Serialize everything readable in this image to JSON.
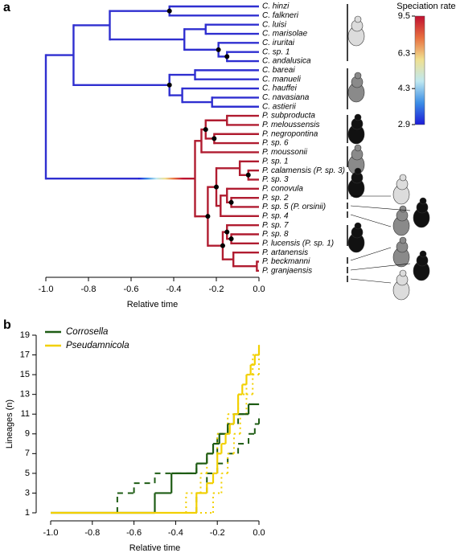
{
  "chart_data": [
    {
      "type": "tree",
      "panel": "a",
      "xlabel": "Relative time",
      "xlim": [
        -1,
        0
      ],
      "xticks": [
        {
          "value": -1,
          "label": "-1.0"
        },
        {
          "value": -0.8,
          "label": "-0.8"
        },
        {
          "value": -0.6,
          "label": "-0.6"
        },
        {
          "value": -0.4,
          "label": "-0.4"
        },
        {
          "value": -0.2,
          "label": "-0.2"
        },
        {
          "value": 0,
          "label": "0.0"
        }
      ],
      "colorbar": {
        "title": "Speciation rate",
        "log": true,
        "lim": [
          2.9,
          9.5
        ],
        "ticks": [
          2.9,
          4.3,
          6.3,
          9.5
        ],
        "colors": [
          "#1c1cd8",
          "#3c8ee6",
          "#bfe8f0",
          "#f0e090",
          "#e87040",
          "#c01030"
        ]
      },
      "tree": {
        "time": -1,
        "color": "#2f2fd0",
        "children": [
          {
            "time": -0.87,
            "color": "#2f2fd0",
            "children": [
              {
                "time": -0.7,
                "children": [
                  {
                    "time": -0.42,
                    "dot": true,
                    "children": [
                      {
                        "label": "C. hinzi"
                      },
                      {
                        "label": "C. falkneri"
                      }
                    ]
                  },
                  {
                    "time": -0.35,
                    "children": [
                      {
                        "time": -0.25,
                        "children": [
                          {
                            "label": "C. luisi"
                          },
                          {
                            "label": "C. marisolae"
                          }
                        ]
                      },
                      {
                        "time": -0.19,
                        "dot": true,
                        "children": [
                          {
                            "label": "C. iruritai"
                          },
                          {
                            "time": -0.15,
                            "dot": true,
                            "children": [
                              {
                                "label": "C. sp. 1"
                              },
                              {
                                "label": "C. andalusica"
                              }
                            ]
                          }
                        ]
                      }
                    ]
                  }
                ]
              },
              {
                "time": -0.42,
                "dot": true,
                "children": [
                  {
                    "time": -0.3,
                    "children": [
                      {
                        "label": "C. bareai"
                      },
                      {
                        "label": "C. manueli"
                      }
                    ]
                  },
                  {
                    "time": -0.36,
                    "children": [
                      {
                        "label": "C. hauffei"
                      },
                      {
                        "time": -0.22,
                        "children": [
                          {
                            "label": "C. navasiana"
                          },
                          {
                            "label": "C. astierii"
                          }
                        ]
                      }
                    ]
                  }
                ]
              }
            ]
          },
          {
            "time": -0.3,
            "color": "#b01c30",
            "children": [
              {
                "time": -0.27,
                "children": [
                  {
                    "time": -0.25,
                    "dot": true,
                    "children": [
                      {
                        "time": -0.15,
                        "children": [
                          {
                            "label": "P. subproducta"
                          },
                          {
                            "label": "P. meloussensis"
                          }
                        ]
                      },
                      {
                        "time": -0.21,
                        "dot": true,
                        "children": [
                          {
                            "label": "P. negropontina"
                          },
                          {
                            "label": "P. sp. 6"
                          }
                        ]
                      }
                    ]
                  },
                  {
                    "label": "P. moussonii"
                  }
                ]
              },
              {
                "time": -0.24,
                "dot": true,
                "children": [
                  {
                    "time": -0.2,
                    "dot": true,
                    "children": [
                      {
                        "time": -0.09,
                        "children": [
                          {
                            "label": "P. sp. 1"
                          },
                          {
                            "time": -0.05,
                            "dot": true,
                            "children": [
                              {
                                "label": "P. calamensis (P. sp. 3)"
                              },
                              {
                                "label": "P. sp. 3"
                              }
                            ]
                          }
                        ]
                      },
                      {
                        "time": -0.18,
                        "children": [
                          {
                            "time": -0.15,
                            "children": [
                              {
                                "label": "P. conovula"
                              },
                              {
                                "time": -0.13,
                                "dot": true,
                                "children": [
                                  {
                                    "label": "P. sp. 2"
                                  },
                                  {
                                    "label": "P. sp. 5 (P. orsinii)"
                                  }
                                ]
                              }
                            ]
                          },
                          {
                            "label": "P. sp. 4"
                          }
                        ]
                      }
                    ]
                  },
                  {
                    "time": -0.17,
                    "dot": true,
                    "children": [
                      {
                        "time": -0.15,
                        "dot": true,
                        "children": [
                          {
                            "label": "P. sp. 7"
                          },
                          {
                            "time": -0.13,
                            "dot": true,
                            "children": [
                              {
                                "label": "P. sp. 8"
                              },
                              {
                                "label": "P. lucensis (P. sp. 1)"
                              }
                            ]
                          }
                        ]
                      },
                      {
                        "time": -0.12,
                        "children": [
                          {
                            "label": "P. artanensis"
                          },
                          {
                            "time": -0.01,
                            "children": [
                              {
                                "label": "P. beckmanni"
                              },
                              {
                                "label": "P. granjaensis"
                              }
                            ]
                          }
                        ]
                      }
                    ]
                  }
                ]
              }
            ]
          }
        ]
      }
    },
    {
      "type": "step",
      "panel": "b",
      "xlabel": "Relative time",
      "ylabel": "Lineages (n)",
      "xlim": [
        -1,
        0
      ],
      "ylim": [
        1,
        19
      ],
      "xticks": [
        {
          "value": -1,
          "label": "-1.0"
        },
        {
          "value": -0.8,
          "label": "-0.8"
        },
        {
          "value": -0.6,
          "label": "-0.6"
        },
        {
          "value": -0.4,
          "label": "-0.4"
        },
        {
          "value": -0.2,
          "label": "-0.2"
        },
        {
          "value": 0,
          "label": "0.0"
        }
      ],
      "yticks": [
        1,
        3,
        5,
        7,
        9,
        11,
        13,
        15,
        17,
        19
      ],
      "series": [
        {
          "name": "Corrosella",
          "color": "#1e5c14",
          "ci_dash": "7,6",
          "x": [
            -1,
            -0.5,
            -0.42,
            -0.3,
            -0.25,
            -0.22,
            -0.19,
            -0.15,
            -0.12,
            -0.1,
            -0.05,
            0
          ],
          "values": [
            1,
            3,
            5,
            6,
            7,
            8,
            9,
            10,
            11,
            11,
            12,
            12
          ],
          "ci": [
            {
              "x": [
                -1,
                -0.68,
                -0.6,
                -0.5,
                -0.3,
                -0.25,
                -0.2,
                -0.15,
                -0.1,
                -0.05,
                0
              ],
              "values": [
                1,
                3,
                4,
                5,
                6,
                7,
                9,
                10,
                11,
                12,
                12
              ]
            },
            {
              "x": [
                -1,
                -0.3,
                -0.25,
                -0.2,
                -0.15,
                -0.1,
                -0.05,
                -0.02,
                0
              ],
              "values": [
                1,
                3,
                5,
                6,
                7,
                8,
                9,
                10,
                11
              ]
            }
          ]
        },
        {
          "name": "Pseudamnicola",
          "color": "#f2d000",
          "ci_dash": "2,4",
          "x": [
            -1,
            -0.3,
            -0.25,
            -0.22,
            -0.2,
            -0.18,
            -0.16,
            -0.14,
            -0.12,
            -0.1,
            -0.08,
            -0.06,
            -0.04,
            -0.02,
            0
          ],
          "values": [
            1,
            3,
            4,
            5,
            7,
            8,
            9,
            10,
            11,
            13,
            14,
            15,
            16,
            17,
            18
          ],
          "ci": [
            {
              "x": [
                -1,
                -0.35,
                -0.28,
                -0.25,
                -0.2,
                -0.15,
                -0.1,
                -0.06,
                -0.03,
                0
              ],
              "values": [
                1,
                3,
                5,
                7,
                9,
                11,
                13,
                15,
                17,
                18
              ]
            },
            {
              "x": [
                -1,
                -0.22,
                -0.18,
                -0.15,
                -0.12,
                -0.09,
                -0.06,
                -0.03,
                0
              ],
              "values": [
                1,
                3,
                5,
                7,
                9,
                11,
                13,
                15,
                17
              ]
            }
          ]
        }
      ]
    }
  ]
}
